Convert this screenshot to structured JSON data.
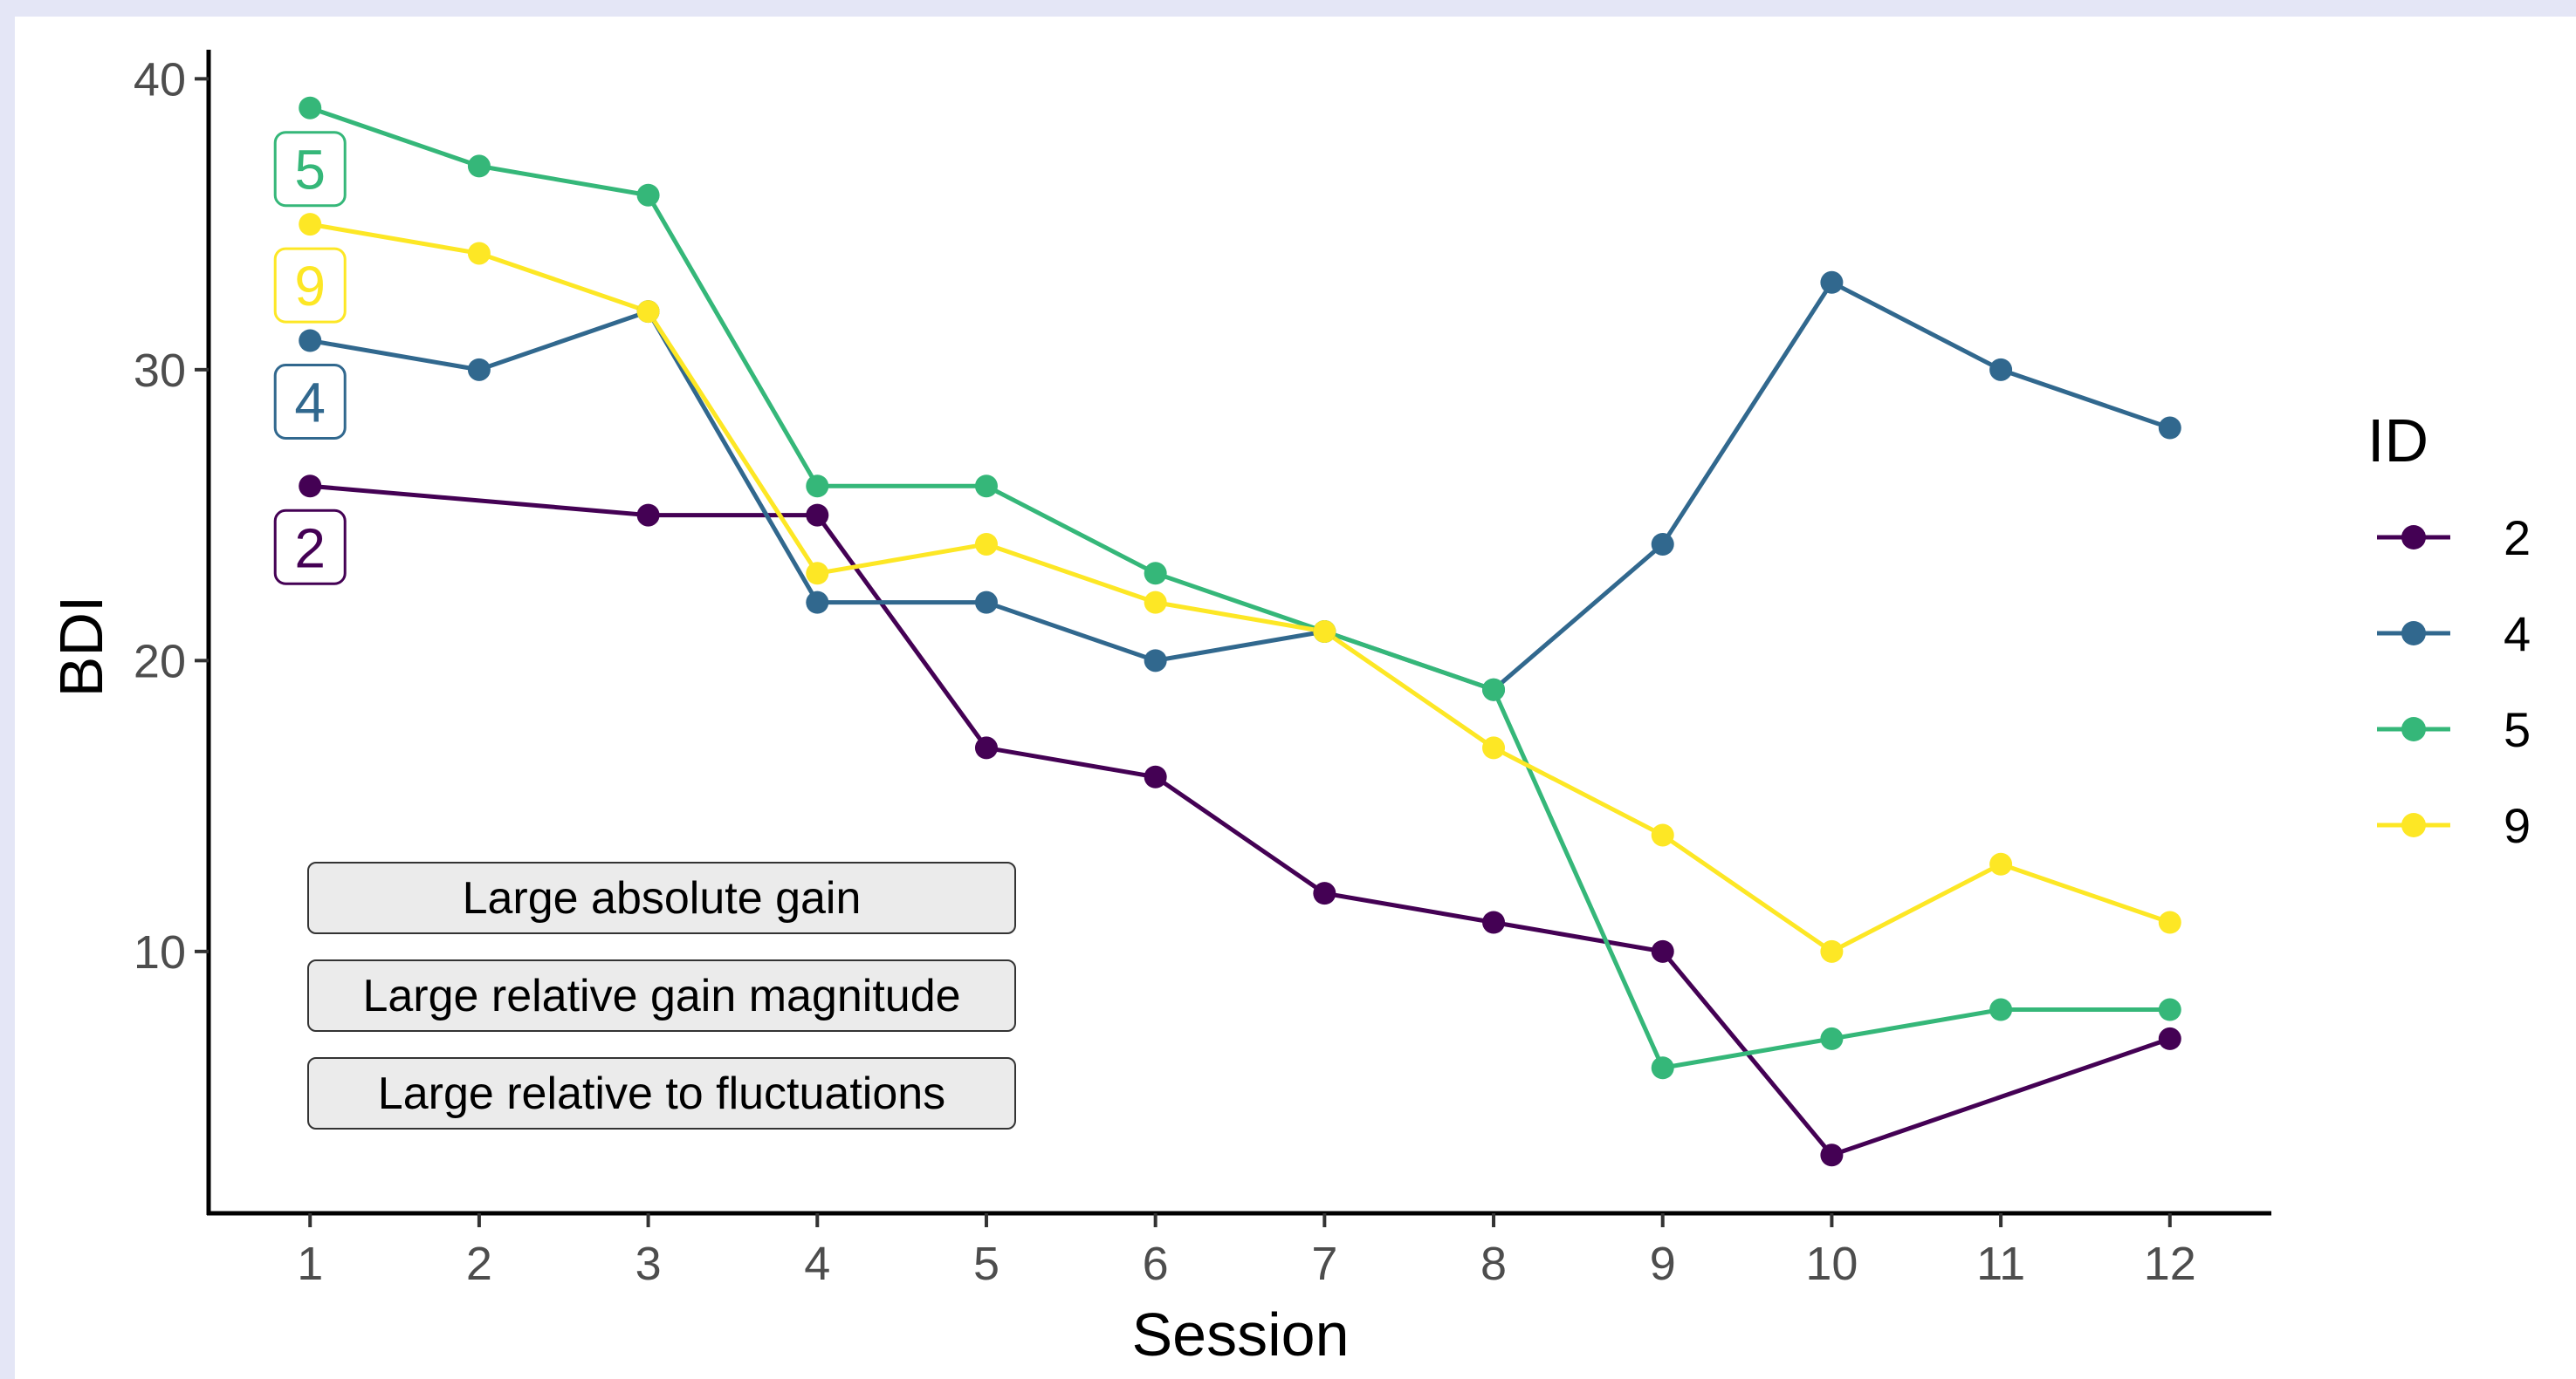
{
  "chart_data": {
    "type": "line",
    "xlabel": "Session",
    "ylabel": "BDI",
    "x": [
      1,
      2,
      3,
      4,
      5,
      6,
      7,
      8,
      9,
      10,
      11,
      12
    ],
    "xlim": [
      0.4,
      12.6
    ],
    "ylim": [
      1,
      41
    ],
    "yticks": [
      10,
      20,
      30,
      40
    ],
    "grid": false,
    "legend": {
      "title": "ID",
      "position": "right"
    },
    "series": [
      {
        "name": "2",
        "color": "#440154",
        "values": [
          26,
          null,
          25,
          25,
          17,
          16,
          12,
          11,
          10,
          3,
          null,
          7
        ]
      },
      {
        "name": "4",
        "color": "#31688e",
        "values": [
          31,
          30,
          32,
          22,
          22,
          20,
          21,
          19,
          24,
          33,
          30,
          28
        ]
      },
      {
        "name": "5",
        "color": "#35b779",
        "values": [
          39,
          37,
          36,
          26,
          26,
          23,
          21,
          19,
          6,
          7,
          8,
          8
        ]
      },
      {
        "name": "9",
        "color": "#fde725",
        "values": [
          35,
          34,
          32,
          23,
          24,
          22,
          21,
          17,
          14,
          10,
          13,
          11
        ]
      }
    ],
    "line_labels": [
      {
        "text": "5",
        "series": "5"
      },
      {
        "text": "9",
        "series": "9"
      },
      {
        "text": "4",
        "series": "4"
      },
      {
        "text": "2",
        "series": "2"
      }
    ],
    "annotations": [
      "Large absolute gain",
      "Large relative gain magnitude",
      "Large relative to fluctuations"
    ]
  }
}
